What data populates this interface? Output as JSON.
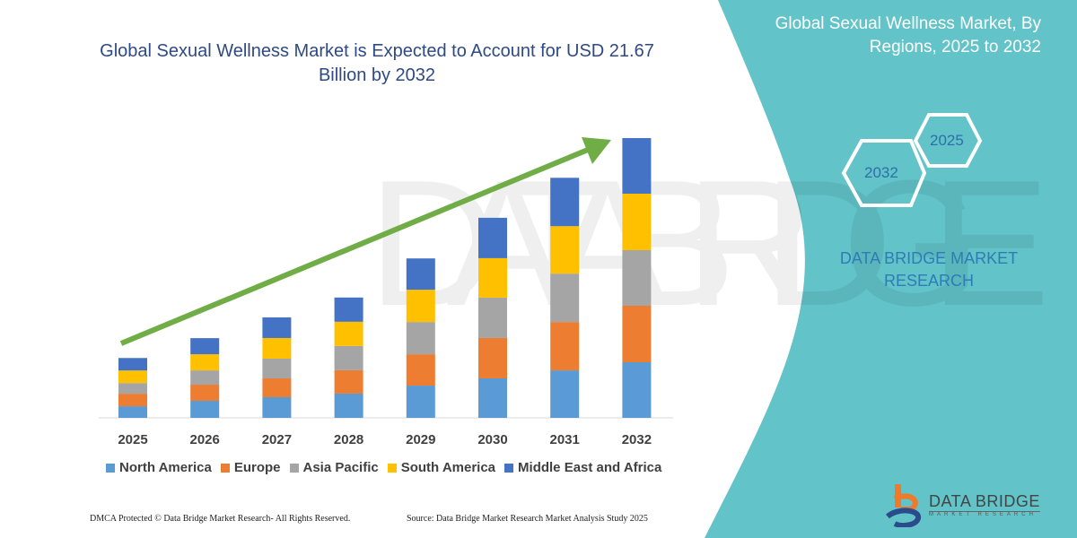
{
  "title": "Global Sexual Wellness Market is Expected to Account for USD 21.67 Billion by 2032",
  "side_panel": {
    "title": "Global Sexual Wellness Market, By Regions, 2025 to 2032",
    "hex_start": "2025",
    "hex_end": "2032",
    "brand": "DATA BRIDGE MARKET RESEARCH",
    "logo_main": "DATA BRIDGE",
    "logo_sub": "MARKET RESEARCH",
    "color": "#62C3C8"
  },
  "footer": {
    "left": "DMCA Protected © Data Bridge Market Research-  All Rights Reserved.",
    "right": "Source: Data Bridge Market Research  Market Analysis Study 2025"
  },
  "chart_data": {
    "type": "bar",
    "stacked": true,
    "title": "Global Sexual Wellness Market is Expected to Account for USD 21.67 Billion by 2032",
    "xlabel": "",
    "ylabel": "",
    "categories": [
      "2025",
      "2026",
      "2027",
      "2028",
      "2029",
      "2030",
      "2031",
      "2032"
    ],
    "series": [
      {
        "name": "North America",
        "color": "#5B9BD5",
        "values": [
          0.9,
          1.32,
          1.6,
          1.88,
          2.5,
          3.06,
          3.68,
          4.31
        ]
      },
      {
        "name": "Europe",
        "color": "#ED7D31",
        "values": [
          0.97,
          1.25,
          1.46,
          1.81,
          2.43,
          3.13,
          3.75,
          4.38
        ]
      },
      {
        "name": "Asia Pacific",
        "color": "#A5A5A5",
        "values": [
          0.83,
          1.11,
          1.53,
          1.88,
          2.5,
          3.13,
          3.75,
          4.31
        ]
      },
      {
        "name": "South America",
        "color": "#FFC000",
        "values": [
          0.97,
          1.25,
          1.6,
          1.88,
          2.5,
          3.06,
          3.68,
          4.38
        ]
      },
      {
        "name": "Middle East and Africa",
        "color": "#4472C4",
        "values": [
          0.97,
          1.25,
          1.6,
          1.88,
          2.43,
          3.13,
          3.75,
          4.31
        ]
      }
    ],
    "trend_arrow_color": "#70AD47",
    "y_axis_shown": false,
    "grid": false,
    "legend_position": "bottom"
  }
}
